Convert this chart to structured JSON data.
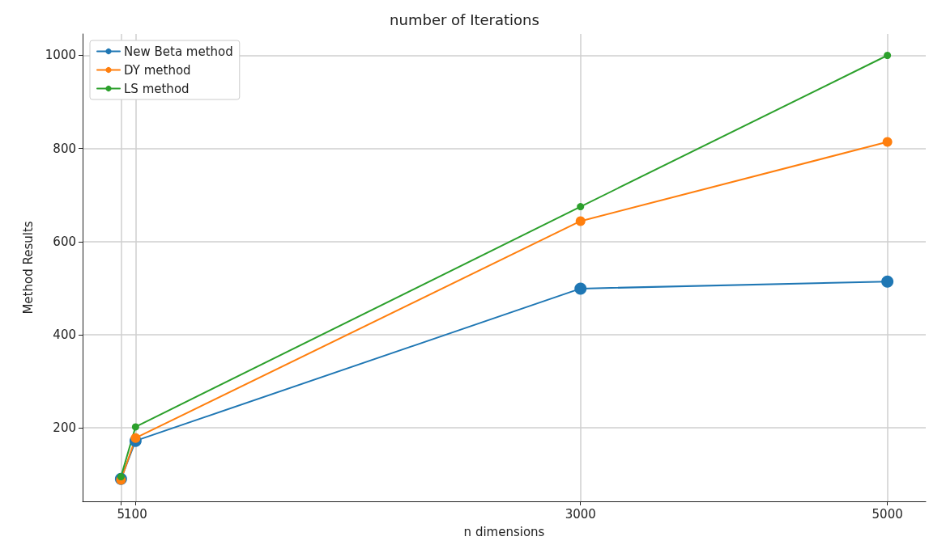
{
  "chart_data": {
    "type": "line",
    "title": "number of Iterations",
    "xlabel": "n dimensions",
    "ylabel": "Method Results",
    "x": [
      5,
      100,
      3000,
      5000
    ],
    "series": [
      {
        "name": "New Beta method",
        "color": "#1f77b4",
        "values": [
          90,
          172,
          499,
          514
        ]
      },
      {
        "name": "DY method",
        "color": "#ff7f0e",
        "values": [
          88,
          178,
          644,
          814
        ]
      },
      {
        "name": "LS method",
        "color": "#2ca02c",
        "values": [
          95,
          202,
          675,
          1000
        ]
      }
    ],
    "xlim": [
      -245,
      5250
    ],
    "xticks": [
      5,
      100,
      3000,
      5000
    ],
    "ylim": [
      42,
      1046
    ],
    "yticks": [
      200,
      400,
      600,
      800,
      1000
    ],
    "grid": true,
    "legend": "top left",
    "marker": "circle",
    "line_style": "solid"
  }
}
